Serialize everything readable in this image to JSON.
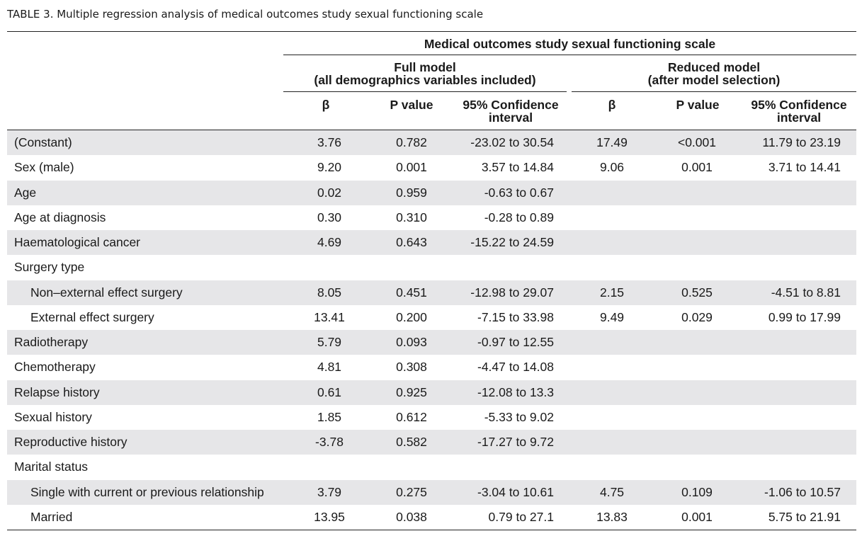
{
  "caption": "TABLE 3.  Multiple regression analysis of medical outcomes study sexual functioning scale",
  "header": {
    "top": "Medical outcomes study sexual functioning scale",
    "full_model_line1": "Full model",
    "full_model_line2": "(all demographics variables included)",
    "reduced_model_line1": "Reduced model",
    "reduced_model_line2": "(after model selection)",
    "col_beta": "β",
    "col_p": "P value",
    "col_ci_line1": "95% Confidence",
    "col_ci_line2": "interval"
  },
  "rows": [
    {
      "label": "(Constant)",
      "indent": false,
      "shade": true,
      "full_beta": "3.76",
      "full_p": "0.782",
      "full_ci": "-23.02 to 30.54",
      "red_beta": "17.49",
      "red_p": "<0.001",
      "red_ci": "11.79 to 23.19"
    },
    {
      "label": "Sex (male)",
      "indent": false,
      "shade": false,
      "full_beta": "9.20",
      "full_p": "0.001",
      "full_ci": "3.57 to 14.84",
      "red_beta": "9.06",
      "red_p": "0.001",
      "red_ci": "3.71 to 14.41"
    },
    {
      "label": "Age",
      "indent": false,
      "shade": true,
      "full_beta": "0.02",
      "full_p": "0.959",
      "full_ci": "-0.63 to 0.67",
      "red_beta": "",
      "red_p": "",
      "red_ci": ""
    },
    {
      "label": "Age at diagnosis",
      "indent": false,
      "shade": false,
      "full_beta": "0.30",
      "full_p": "0.310",
      "full_ci": "-0.28 to 0.89",
      "red_beta": "",
      "red_p": "",
      "red_ci": ""
    },
    {
      "label": "Haematological cancer",
      "indent": false,
      "shade": true,
      "full_beta": "4.69",
      "full_p": "0.643",
      "full_ci": "-15.22 to 24.59",
      "red_beta": "",
      "red_p": "",
      "red_ci": ""
    },
    {
      "label": "Surgery type",
      "indent": false,
      "shade": false,
      "full_beta": "",
      "full_p": "",
      "full_ci": "",
      "red_beta": "",
      "red_p": "",
      "red_ci": ""
    },
    {
      "label": "Non–external effect surgery",
      "indent": true,
      "shade": true,
      "full_beta": "8.05",
      "full_p": "0.451",
      "full_ci": "-12.98 to 29.07",
      "red_beta": "2.15",
      "red_p": "0.525",
      "red_ci": "-4.51 to 8.81"
    },
    {
      "label": "External effect surgery",
      "indent": true,
      "shade": false,
      "full_beta": "13.41",
      "full_p": "0.200",
      "full_ci": "-7.15 to 33.98",
      "red_beta": "9.49",
      "red_p": "0.029",
      "red_ci": "0.99 to 17.99"
    },
    {
      "label": "Radiotherapy",
      "indent": false,
      "shade": true,
      "full_beta": "5.79",
      "full_p": "0.093",
      "full_ci": "-0.97 to 12.55",
      "red_beta": "",
      "red_p": "",
      "red_ci": ""
    },
    {
      "label": "Chemotherapy",
      "indent": false,
      "shade": false,
      "full_beta": "4.81",
      "full_p": "0.308",
      "full_ci": "-4.47 to 14.08",
      "red_beta": "",
      "red_p": "",
      "red_ci": ""
    },
    {
      "label": "Relapse history",
      "indent": false,
      "shade": true,
      "full_beta": "0.61",
      "full_p": "0.925",
      "full_ci": "-12.08 to 13.3",
      "red_beta": "",
      "red_p": "",
      "red_ci": ""
    },
    {
      "label": "Sexual history",
      "indent": false,
      "shade": false,
      "full_beta": "1.85",
      "full_p": "0.612",
      "full_ci": "-5.33 to 9.02",
      "red_beta": "",
      "red_p": "",
      "red_ci": ""
    },
    {
      "label": "Reproductive history",
      "indent": false,
      "shade": true,
      "full_beta": "-3.78",
      "full_p": "0.582",
      "full_ci": "-17.27 to 9.72",
      "red_beta": "",
      "red_p": "",
      "red_ci": ""
    },
    {
      "label": "Marital status",
      "indent": false,
      "shade": false,
      "full_beta": "",
      "full_p": "",
      "full_ci": "",
      "red_beta": "",
      "red_p": "",
      "red_ci": ""
    },
    {
      "label": "Single with current or previous relationship",
      "indent": true,
      "shade": true,
      "full_beta": "3.79",
      "full_p": "0.275",
      "full_ci": "-3.04 to 10.61",
      "red_beta": "4.75",
      "red_p": "0.109",
      "red_ci": "-1.06 to 10.57"
    },
    {
      "label": "Married",
      "indent": true,
      "shade": false,
      "full_beta": "13.95",
      "full_p": "0.038",
      "full_ci": "0.79 to 27.1",
      "red_beta": "13.83",
      "red_p": "0.001",
      "red_ci": "5.75 to 21.91"
    }
  ]
}
